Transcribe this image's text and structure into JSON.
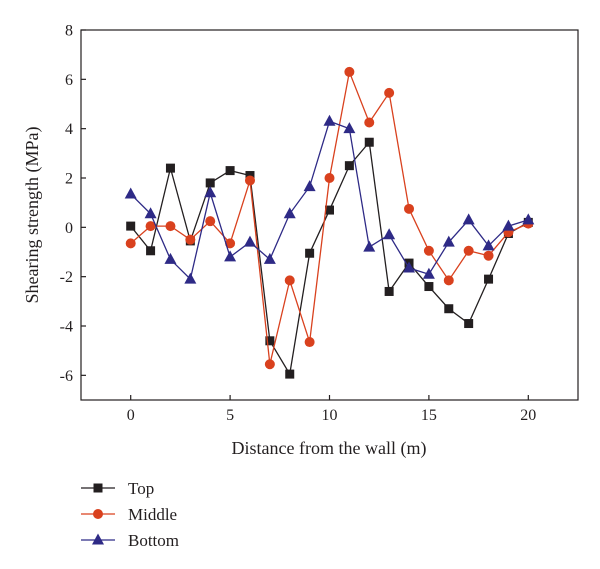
{
  "chart_data": {
    "type": "line",
    "title": "",
    "xlabel": "Distance from the wall (m)",
    "ylabel": "Shearing strength (MPa)",
    "xlim": [
      -2.5,
      22.5
    ],
    "ylim": [
      -7,
      8
    ],
    "xticks": [
      0,
      5,
      10,
      15,
      20
    ],
    "yticks": [
      -6,
      -4,
      -2,
      0,
      2,
      4,
      6,
      8
    ],
    "grid": false,
    "legend_position": "below-left",
    "x": [
      0,
      1,
      2,
      3,
      4,
      5,
      6,
      7,
      8,
      9,
      10,
      11,
      12,
      13,
      14,
      15,
      16,
      17,
      18,
      19,
      20
    ],
    "series": [
      {
        "name": "Top",
        "color": "#231f20",
        "marker": "square",
        "values": [
          0.05,
          -0.95,
          2.4,
          -0.55,
          1.8,
          2.3,
          2.1,
          -4.6,
          -5.95,
          -1.05,
          0.7,
          2.5,
          3.45,
          -2.6,
          -1.45,
          -2.4,
          -3.3,
          -3.9,
          -2.1,
          -0.25,
          0.2
        ]
      },
      {
        "name": "Middle",
        "color": "#d9411e",
        "marker": "circle",
        "values": [
          -0.65,
          0.05,
          0.05,
          -0.5,
          0.25,
          -0.65,
          1.9,
          -5.55,
          -2.15,
          -4.65,
          2.0,
          6.3,
          4.25,
          5.45,
          0.75,
          -0.95,
          -2.15,
          -0.95,
          -1.15,
          -0.2,
          0.15
        ]
      },
      {
        "name": "Bottom",
        "color": "#2e2a86",
        "marker": "triangle",
        "values": [
          1.35,
          0.55,
          -1.3,
          -2.1,
          1.4,
          -1.2,
          -0.6,
          -1.3,
          0.55,
          1.65,
          4.3,
          4.0,
          -0.8,
          -0.3,
          -1.65,
          -1.9,
          -0.6,
          0.3,
          -0.75,
          0.05,
          0.3
        ]
      }
    ]
  }
}
